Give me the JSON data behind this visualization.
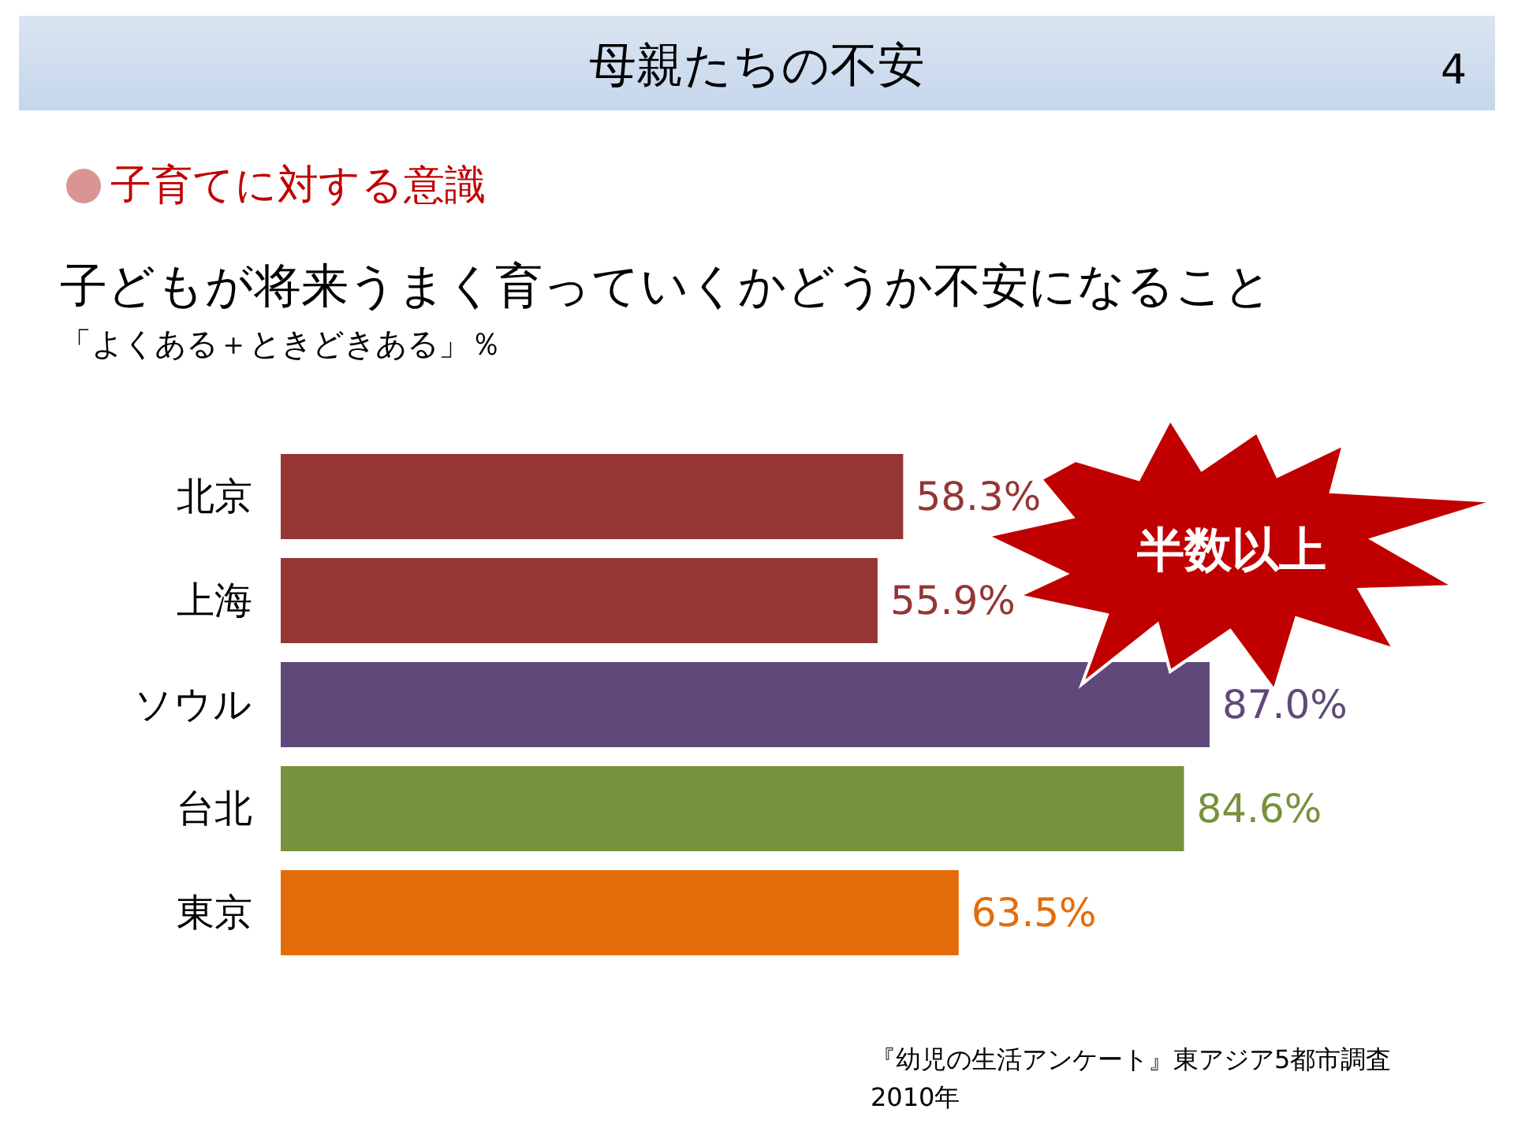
{
  "chart_data": {
    "type": "bar",
    "orientation": "horizontal",
    "title": "母親たちの不安",
    "subtitle": "子育てに対する意識",
    "categories": [
      "北京",
      "上海",
      "ソウル",
      "台北",
      "東京"
    ],
    "values": [
      58.3,
      55.9,
      87.0,
      84.6,
      63.5
    ],
    "colors": [
      "#943634",
      "#943634",
      "#5f497a",
      "#76923c",
      "#e36c09"
    ],
    "value_labels": [
      "58.3%",
      "55.9%",
      "87.0%",
      "84.6%",
      "63.5%"
    ],
    "annotations": [
      "4",
      "子どもが将来うまく育っていくかどうか不安になること",
      "「よくある＋ときどきある」％",
      "半数以上",
      "『幼児の生活アンケート』東アジア5都市調査",
      "2010年"
    ]
  }
}
